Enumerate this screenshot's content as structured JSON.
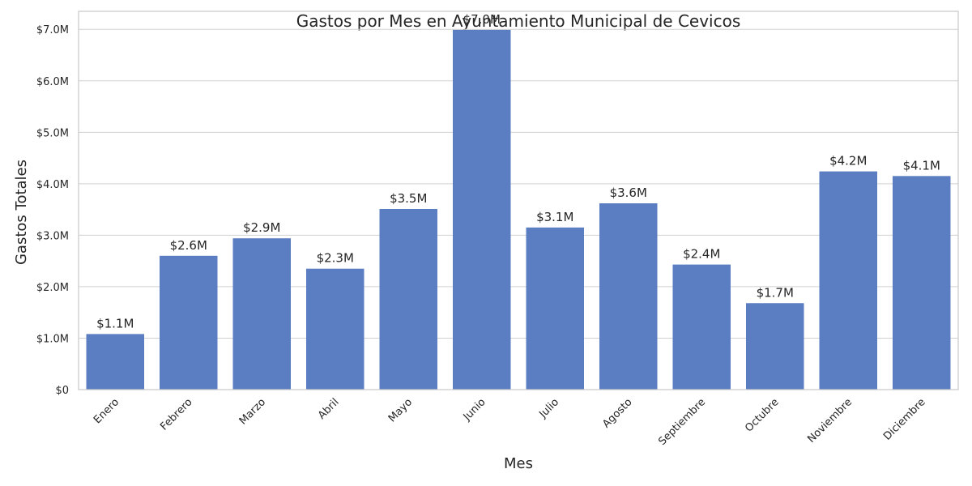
{
  "chart_data": {
    "type": "bar",
    "title": "Gastos por Mes en Ayuntamiento Municipal de Cevicos",
    "xlabel": "Mes",
    "ylabel": "Gastos Totales",
    "categories": [
      "Enero",
      "Febrero",
      "Marzo",
      "Abril",
      "Mayo",
      "Junio",
      "Julio",
      "Agosto",
      "Septiembre",
      "Octubre",
      "Noviembre",
      "Diciembre"
    ],
    "values": [
      1.08,
      2.6,
      2.94,
      2.35,
      3.51,
      6.99,
      3.15,
      3.62,
      2.43,
      1.68,
      4.24,
      4.15
    ],
    "value_unit": "millions USD",
    "data_labels": [
      "$1.1M",
      "$2.6M",
      "$2.9M",
      "$2.3M",
      "$3.5M",
      "$7.0M",
      "$3.1M",
      "$3.6M",
      "$2.4M",
      "$1.7M",
      "$4.2M",
      "$4.1M"
    ],
    "yticks": [
      0,
      1,
      2,
      3,
      4,
      5,
      6,
      7
    ],
    "ytick_labels": [
      "$0",
      "$1.0M",
      "$2.0M",
      "$3.0M",
      "$4.0M",
      "$5.0M",
      "$6.0M",
      "$7.0M"
    ],
    "ylim": [
      0,
      7.35
    ],
    "grid": "horizontal",
    "bar_color": "#5b7ec2"
  }
}
